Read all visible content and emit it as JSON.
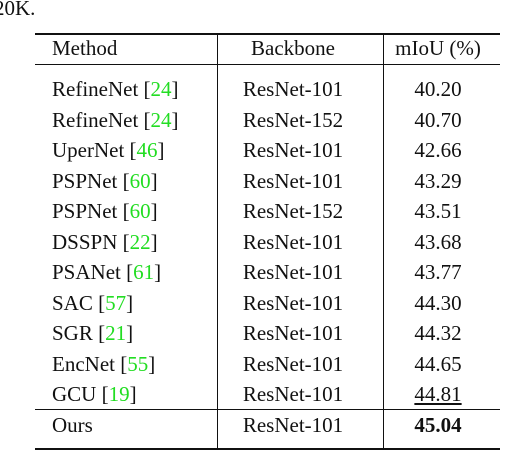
{
  "caption_fragment": "20K.",
  "table": {
    "header": [
      "Method",
      "Backbone",
      "mIoU (%)"
    ],
    "rows": [
      {
        "method": "RefineNet [24]",
        "backbone": "ResNet-101",
        "miou": "40.20"
      },
      {
        "method": "RefineNet [24]",
        "backbone": "ResNet-152",
        "miou": "40.70"
      },
      {
        "method": "UperNet [46]",
        "backbone": "ResNet-101",
        "miou": "42.66"
      },
      {
        "method": "PSPNet [60]",
        "backbone": "ResNet-101",
        "miou": "43.29"
      },
      {
        "method": "PSPNet [60]",
        "backbone": "ResNet-152",
        "miou": "43.51"
      },
      {
        "method": "DSSPN [22]",
        "backbone": "ResNet-101",
        "miou": "43.68"
      },
      {
        "method": "PSANet [61]",
        "backbone": "ResNet-101",
        "miou": "43.77"
      },
      {
        "method": "SAC [57]",
        "backbone": "ResNet-101",
        "miou": "44.30"
      },
      {
        "method": "SGR [21]",
        "backbone": "ResNet-101",
        "miou": "44.32"
      },
      {
        "method": "EncNet [55]",
        "backbone": "ResNet-101",
        "miou": "44.65"
      },
      {
        "method": "GCU [19]",
        "backbone": "ResNet-101",
        "miou": "44.81",
        "emphasis": "underline"
      },
      {
        "method": "Ours",
        "backbone": "ResNet-101",
        "miou": "45.04",
        "emphasis": "bold"
      }
    ]
  }
}
